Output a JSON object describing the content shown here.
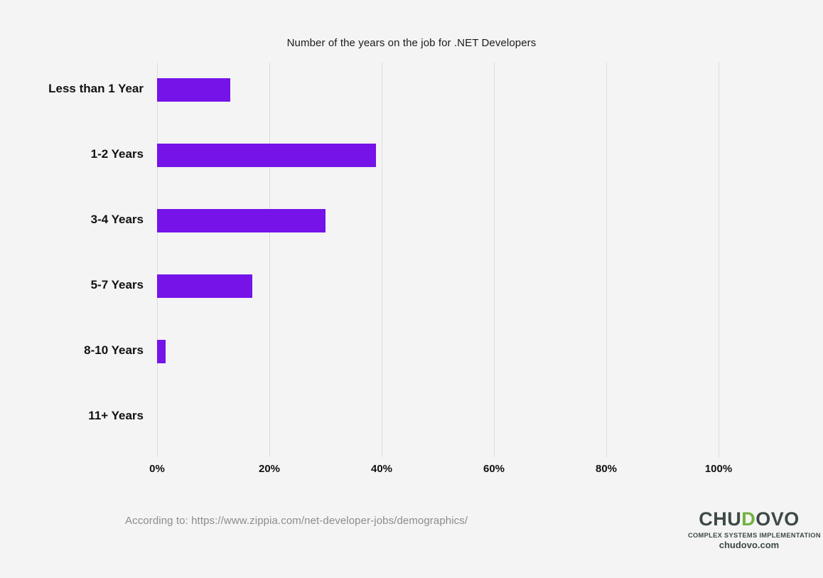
{
  "page": {
    "background_color": "#f4f4f4"
  },
  "chart_data": {
    "type": "bar",
    "orientation": "horizontal",
    "title": "Number of the years on the job for .NET Developers",
    "categories": [
      "Less than 1 Year",
      "1-2 Years",
      "3-4 Years",
      "5-7 Years",
      "8-10 Years",
      "11+ Years"
    ],
    "values": [
      13,
      39,
      30,
      17,
      1.5,
      0
    ],
    "x_tick_labels": [
      "0%",
      "20%",
      "40%",
      "60%",
      "80%",
      "100%"
    ],
    "x_tick_values": [
      0,
      20,
      40,
      60,
      80,
      100
    ],
    "xlim": [
      0,
      100
    ],
    "xlabel": "",
    "ylabel": "",
    "bar_color": "#7513e8",
    "gridline_color": "#dcdcdc",
    "grid": "vertical-only",
    "legend": "none",
    "data_labels": "none"
  },
  "footer": {
    "source_text": "According to: https://www.zippia.com/net-developer-jobs/demographics/"
  },
  "logo": {
    "brand_prefix": "CHU",
    "brand_d": "D",
    "brand_suffix": "OVO",
    "tagline": "COMPLEX SYSTEMS IMPLEMENTATION",
    "website": "chudovo.com",
    "brand_color": "#3e4a45",
    "accent_green": "#6fb33e"
  }
}
